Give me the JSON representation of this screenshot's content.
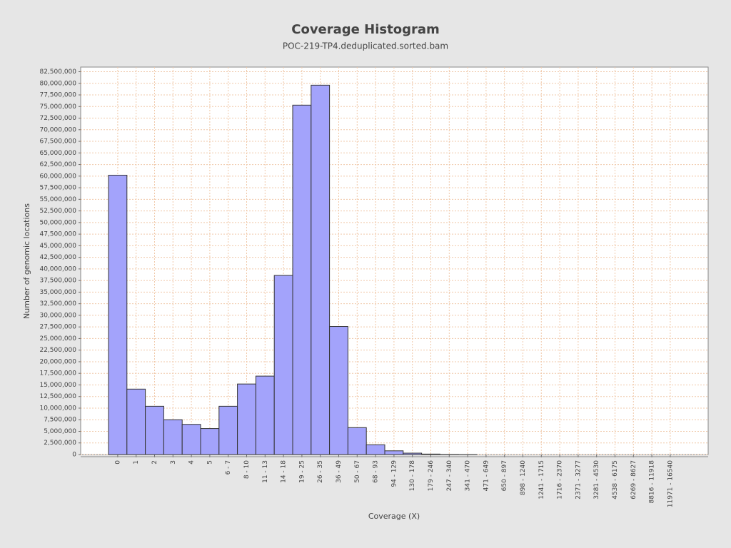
{
  "chart_data": {
    "type": "bar",
    "title": "Coverage Histogram",
    "subtitle": "POC-219-TP4.deduplicated.sorted.bam",
    "x_label": "Coverage (X)",
    "y_label": "Number of genomic locations",
    "categories": [
      "0",
      "1",
      "2",
      "3",
      "4",
      "5",
      "6 - 7",
      "8 - 10",
      "11 - 13",
      "14 - 18",
      "19 - 25",
      "26 - 35",
      "36 - 49",
      "50 - 67",
      "68 - 93",
      "94 - 129",
      "130 - 178",
      "179 - 246",
      "247 - 340",
      "341 - 470",
      "471 - 649",
      "650 - 897",
      "898 - 1240",
      "1241 - 1715",
      "1716 - 2370",
      "2371 - 3277",
      "3281 - 4530",
      "4538 - 6175",
      "6269 - 8627",
      "8816 - 11918",
      "11971 - 16540"
    ],
    "values": [
      60200000,
      14100000,
      10400000,
      7500000,
      6500000,
      5600000,
      10400000,
      15200000,
      16900000,
      38600000,
      75300000,
      79600000,
      27600000,
      5800000,
      2100000,
      800000,
      300000,
      100000,
      30000,
      10000,
      0,
      0,
      0,
      0,
      0,
      0,
      0,
      0,
      0,
      0,
      0
    ],
    "color": "#a3a3fb",
    "grid": true,
    "ylim": [
      0,
      83500000
    ],
    "yticks": [
      0,
      {
        "value": 2500000,
        "label": "2,500,000"
      },
      {
        "value": 5000000,
        "label": "5,000,000"
      },
      {
        "value": 7500000,
        "label": "7,500,000"
      },
      {
        "value": 10000000,
        "label": "10,000,000"
      },
      {
        "value": 12500000,
        "label": "12,500,000"
      },
      {
        "value": 15000000,
        "label": "15,000,000"
      },
      {
        "value": 17500000,
        "label": "17,500,000"
      },
      {
        "value": 20000000,
        "label": "20,000,000"
      },
      {
        "value": 22500000,
        "label": "22,500,000"
      },
      {
        "value": 25000000,
        "label": "25,000,000"
      },
      {
        "value": 27500000,
        "label": "27,500,000"
      },
      {
        "value": 30000000,
        "label": "30,000,000"
      },
      {
        "value": 32500000,
        "label": "32,500,000"
      },
      {
        "value": 35000000,
        "label": "35,000,000"
      },
      {
        "value": 37500000,
        "label": "37,500,000"
      },
      {
        "value": 40000000,
        "label": "40,000,000"
      },
      {
        "value": 42500000,
        "label": "42,500,000"
      },
      {
        "value": 45000000,
        "label": "45,000,000"
      },
      {
        "value": 47500000,
        "label": "47,500,000"
      },
      {
        "value": 50000000,
        "label": "50,000,000"
      },
      {
        "value": 52500000,
        "label": "52,500,000"
      },
      {
        "value": 55000000,
        "label": "55,000,000"
      },
      {
        "value": 57500000,
        "label": "57,500,000"
      },
      {
        "value": 60000000,
        "label": "60,000,000"
      },
      {
        "value": 62500000,
        "label": "62,500,000"
      },
      {
        "value": 65000000,
        "label": "65,000,000"
      },
      {
        "value": 67500000,
        "label": "67,500,000"
      },
      {
        "value": 70000000,
        "label": "70,000,000"
      },
      {
        "value": 72500000,
        "label": "72,500,000"
      },
      {
        "value": 75000000,
        "label": "75,000,000"
      },
      {
        "value": 77500000,
        "label": "77,500,000"
      },
      {
        "value": 80000000,
        "label": "80,000,000"
      },
      {
        "value": 82500000,
        "label": "82,500,000"
      }
    ]
  }
}
